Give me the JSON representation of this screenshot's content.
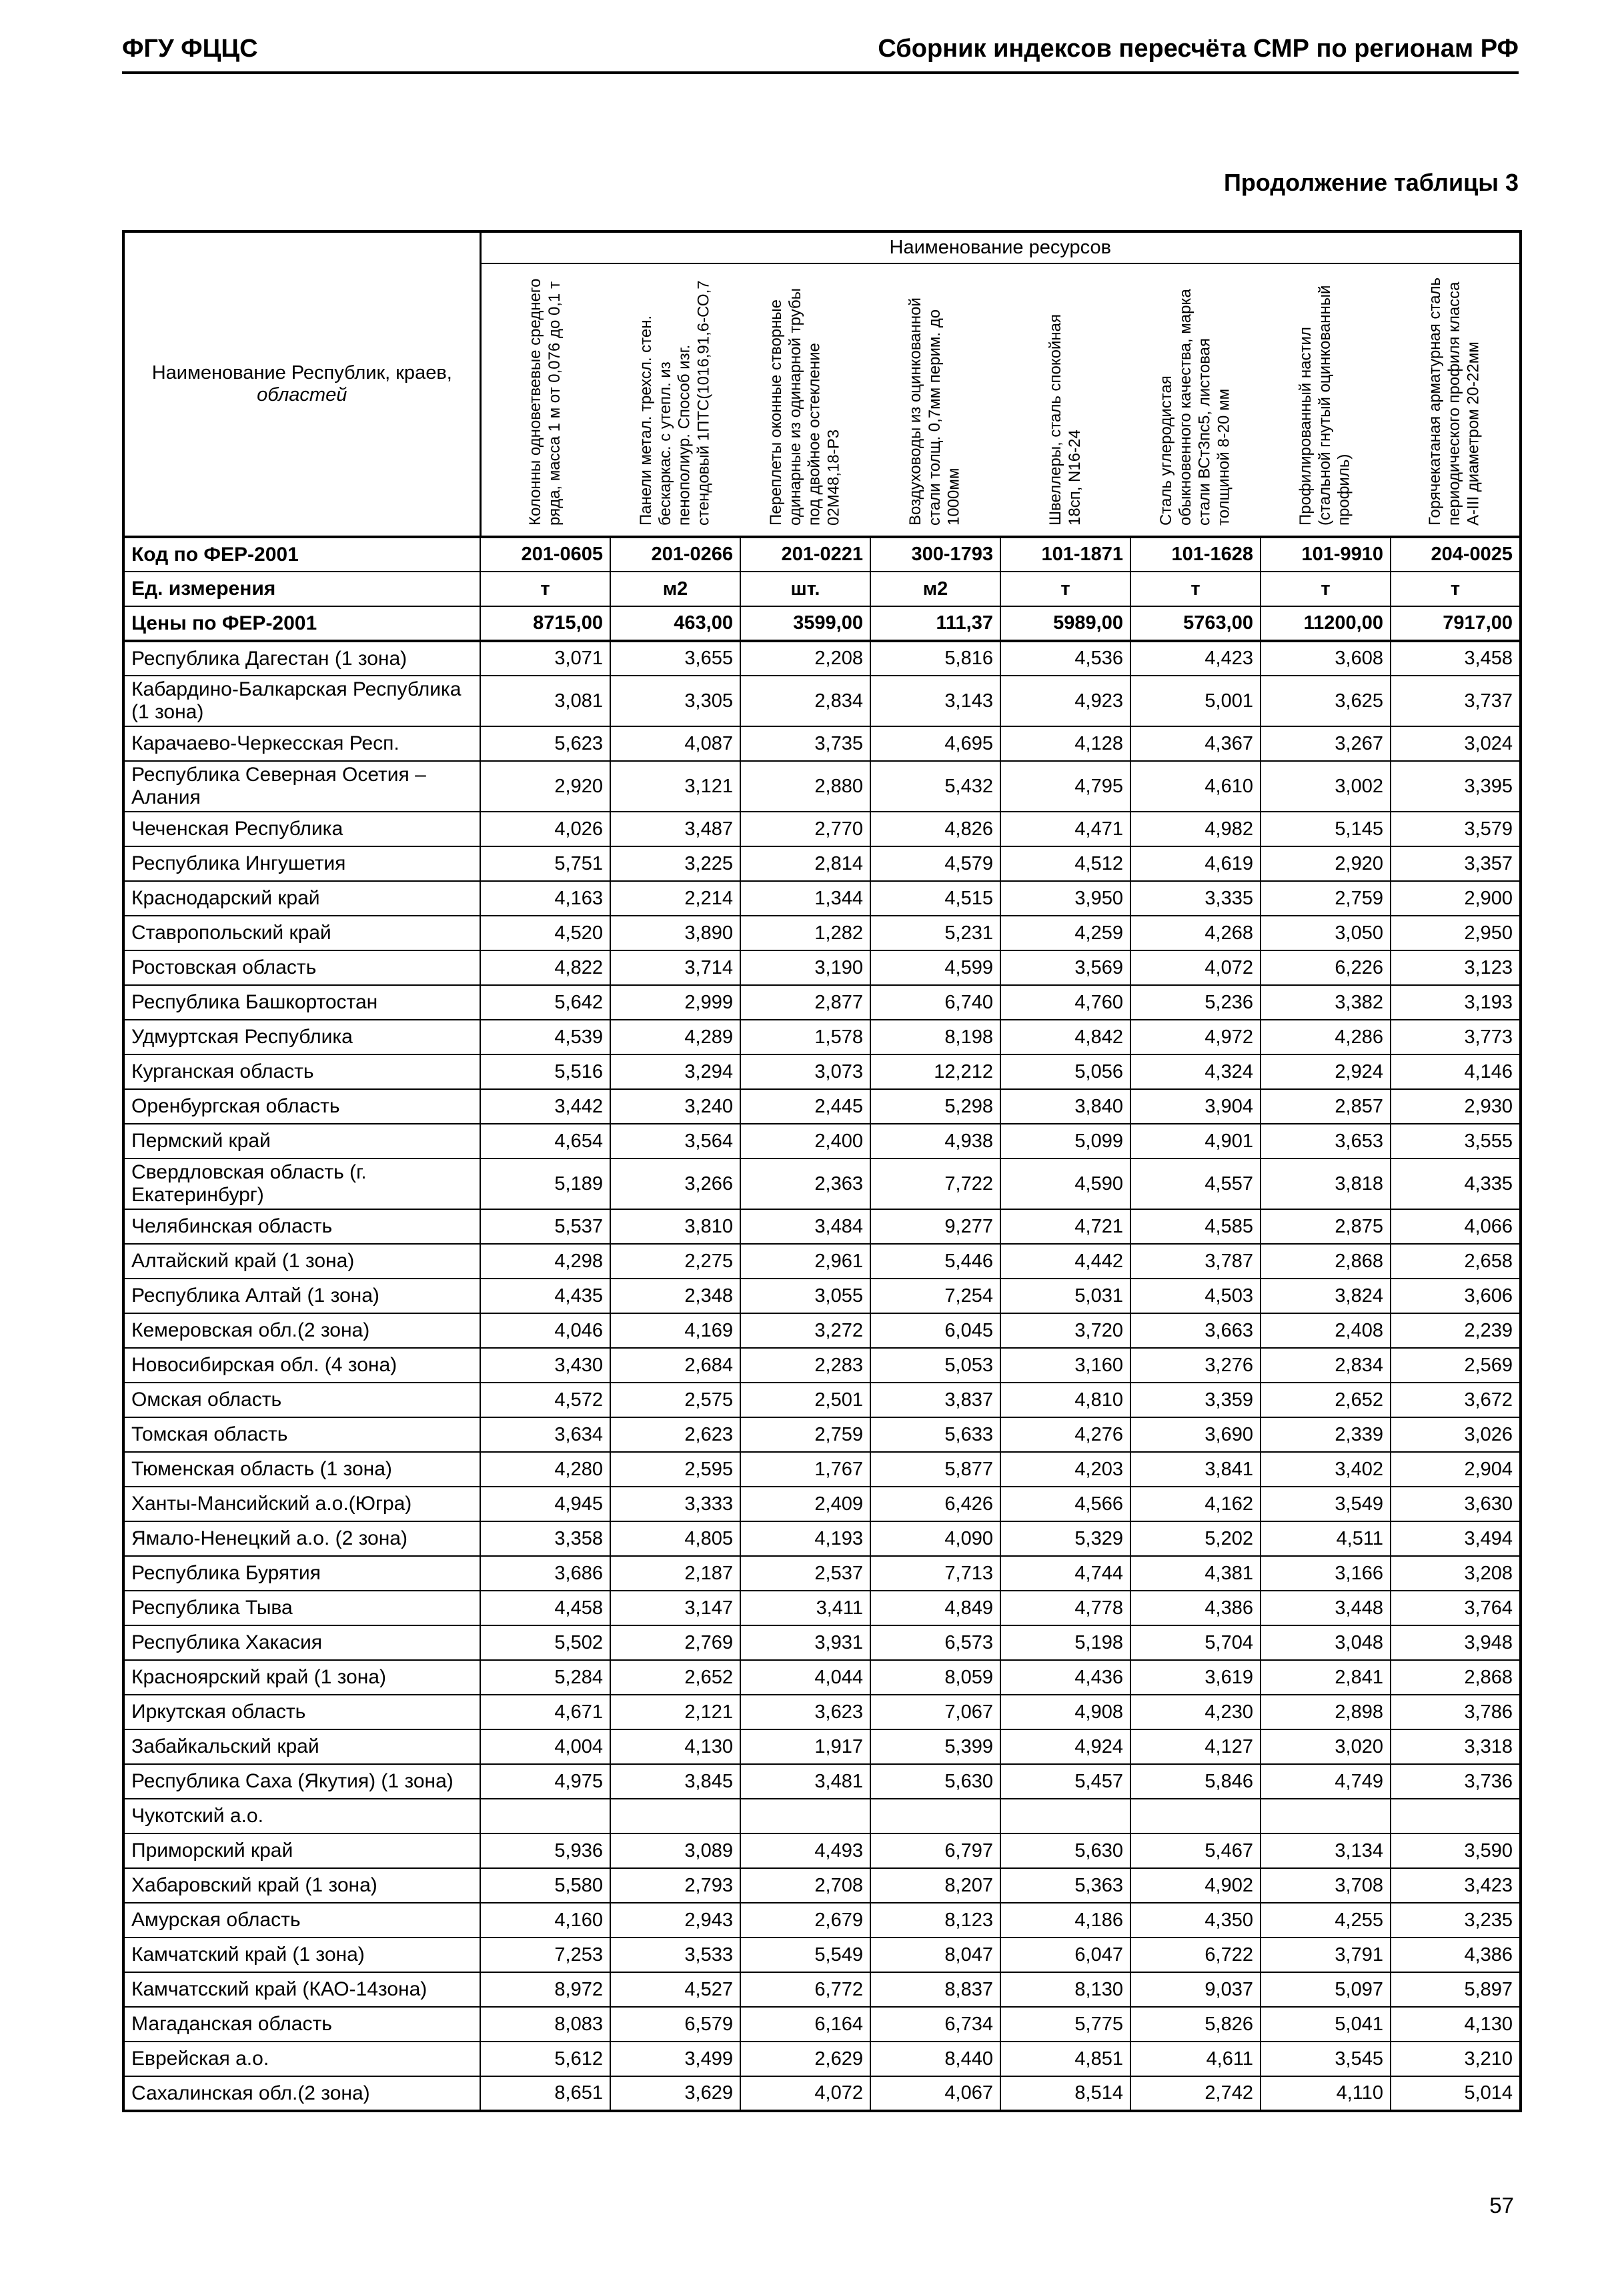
{
  "page": {
    "header_left": "ФГУ ФЦЦС",
    "header_right": "Сборник индексов пересчёта СМР  по регионам РФ",
    "table_caption": "Продолжение таблицы 3",
    "page_number": "57"
  },
  "table": {
    "corner_line1": "Наименование Республик, краев,",
    "corner_line2": "областей",
    "resources_header": "Наименование ресурсов",
    "columns": [
      "Колонны одноветвевые среднего ряда, масса 1 м от 0,076 до 0,1 т",
      "Панели метал. трехсл. стен. бескаркас. с утепл. из пенополиур. Способ изг. стендовый 1ПТС(1016,91,6-СО,7",
      "Переплеты оконные створные одинарные из одинарной трубы под двойное остекление 02М48,18-Р3",
      "Воздуховоды из оцинкованной стали толщ. 0,7мм перим. до 1000мм",
      "Швеллеры, сталь спокойная 18сп, N16-24",
      "Сталь углеродистая обыкновенного качества, марка стали ВСт3пс5, листовая толщиной 8-20 мм",
      "Профилированный настил (стальной гнутый оцинкованный профиль)",
      "Горячекатаная арматурная сталь периодического профиля класса А-III диаметром 20-22мм"
    ],
    "meta_rows": [
      {
        "label": "Код по ФЕР-2001",
        "values": [
          "201-0605",
          "201-0266",
          "201-0221",
          "300-1793",
          "101-1871",
          "101-1628",
          "101-9910",
          "204-0025"
        ]
      },
      {
        "label": "Ед. измерения",
        "values": [
          "т",
          "м2",
          "шт.",
          "м2",
          "т",
          "т",
          "т",
          "т"
        ]
      },
      {
        "label": "Цены по ФЕР-2001",
        "values": [
          "8715,00",
          "463,00",
          "3599,00",
          "111,37",
          "5989,00",
          "5763,00",
          "11200,00",
          "7917,00"
        ]
      }
    ],
    "rows": [
      {
        "label": "Республика Дагестан (1 зона)",
        "values": [
          "3,071",
          "3,655",
          "2,208",
          "5,816",
          "4,536",
          "4,423",
          "3,608",
          "3,458"
        ]
      },
      {
        "label": "Кабардино-Балкарская Республика (1 зона)",
        "values": [
          "3,081",
          "3,305",
          "2,834",
          "3,143",
          "4,923",
          "5,001",
          "3,625",
          "3,737"
        ]
      },
      {
        "label": "Карачаево-Черкесская Респ.",
        "values": [
          "5,623",
          "4,087",
          "3,735",
          "4,695",
          "4,128",
          "4,367",
          "3,267",
          "3,024"
        ]
      },
      {
        "label": "Республика Северная Осетия – Алания",
        "values": [
          "2,920",
          "3,121",
          "2,880",
          "5,432",
          "4,795",
          "4,610",
          "3,002",
          "3,395"
        ]
      },
      {
        "label": "Чеченская Республика",
        "values": [
          "4,026",
          "3,487",
          "2,770",
          "4,826",
          "4,471",
          "4,982",
          "5,145",
          "3,579"
        ]
      },
      {
        "label": "Республика Ингушетия",
        "values": [
          "5,751",
          "3,225",
          "2,814",
          "4,579",
          "4,512",
          "4,619",
          "2,920",
          "3,357"
        ]
      },
      {
        "label": "Краснодарский край",
        "values": [
          "4,163",
          "2,214",
          "1,344",
          "4,515",
          "3,950",
          "3,335",
          "2,759",
          "2,900"
        ]
      },
      {
        "label": "Ставропольский край",
        "values": [
          "4,520",
          "3,890",
          "1,282",
          "5,231",
          "4,259",
          "4,268",
          "3,050",
          "2,950"
        ]
      },
      {
        "label": "Ростовская область",
        "values": [
          "4,822",
          "3,714",
          "3,190",
          "4,599",
          "3,569",
          "4,072",
          "6,226",
          "3,123"
        ]
      },
      {
        "label": "Республика Башкортостан",
        "values": [
          "5,642",
          "2,999",
          "2,877",
          "6,740",
          "4,760",
          "5,236",
          "3,382",
          "3,193"
        ]
      },
      {
        "label": "Удмуртская Республика",
        "values": [
          "4,539",
          "4,289",
          "1,578",
          "8,198",
          "4,842",
          "4,972",
          "4,286",
          "3,773"
        ]
      },
      {
        "label": "Курганская область",
        "values": [
          "5,516",
          "3,294",
          "3,073",
          "12,212",
          "5,056",
          "4,324",
          "2,924",
          "4,146"
        ]
      },
      {
        "label": "Оренбургская область",
        "values": [
          "3,442",
          "3,240",
          "2,445",
          "5,298",
          "3,840",
          "3,904",
          "2,857",
          "2,930"
        ]
      },
      {
        "label": "Пермский край",
        "values": [
          "4,654",
          "3,564",
          "2,400",
          "4,938",
          "5,099",
          "4,901",
          "3,653",
          "3,555"
        ]
      },
      {
        "label": "Свердловская область (г. Екатеринбург)",
        "values": [
          "5,189",
          "3,266",
          "2,363",
          "7,722",
          "4,590",
          "4,557",
          "3,818",
          "4,335"
        ]
      },
      {
        "label": "Челябинская область",
        "values": [
          "5,537",
          "3,810",
          "3,484",
          "9,277",
          "4,721",
          "4,585",
          "2,875",
          "4,066"
        ]
      },
      {
        "label": "Алтайский край (1 зона)",
        "values": [
          "4,298",
          "2,275",
          "2,961",
          "5,446",
          "4,442",
          "3,787",
          "2,868",
          "2,658"
        ]
      },
      {
        "label": "Республика Алтай (1 зона)",
        "values": [
          "4,435",
          "2,348",
          "3,055",
          "7,254",
          "5,031",
          "4,503",
          "3,824",
          "3,606"
        ]
      },
      {
        "label": "Кемеровская обл.(2 зона)",
        "values": [
          "4,046",
          "4,169",
          "3,272",
          "6,045",
          "3,720",
          "3,663",
          "2,408",
          "2,239"
        ]
      },
      {
        "label": "Новосибирская обл. (4 зона)",
        "values": [
          "3,430",
          "2,684",
          "2,283",
          "5,053",
          "3,160",
          "3,276",
          "2,834",
          "2,569"
        ]
      },
      {
        "label": "Омская область",
        "values": [
          "4,572",
          "2,575",
          "2,501",
          "3,837",
          "4,810",
          "3,359",
          "2,652",
          "3,672"
        ]
      },
      {
        "label": "Томская область",
        "values": [
          "3,634",
          "2,623",
          "2,759",
          "5,633",
          "4,276",
          "3,690",
          "2,339",
          "3,026"
        ]
      },
      {
        "label": "Тюменская область (1 зона)",
        "values": [
          "4,280",
          "2,595",
          "1,767",
          "5,877",
          "4,203",
          "3,841",
          "3,402",
          "2,904"
        ]
      },
      {
        "label": "Ханты-Мансийский а.о.(Югра)",
        "values": [
          "4,945",
          "3,333",
          "2,409",
          "6,426",
          "4,566",
          "4,162",
          "3,549",
          "3,630"
        ]
      },
      {
        "label": "Ямало-Ненецкий а.о. (2 зона)",
        "values": [
          "3,358",
          "4,805",
          "4,193",
          "4,090",
          "5,329",
          "5,202",
          "4,511",
          "3,494"
        ]
      },
      {
        "label": "Республика Бурятия",
        "values": [
          "3,686",
          "2,187",
          "2,537",
          "7,713",
          "4,744",
          "4,381",
          "3,166",
          "3,208"
        ]
      },
      {
        "label": "Республика Тыва",
        "values": [
          "4,458",
          "3,147",
          "3,411",
          "4,849",
          "4,778",
          "4,386",
          "3,448",
          "3,764"
        ]
      },
      {
        "label": "Республика Хакасия",
        "values": [
          "5,502",
          "2,769",
          "3,931",
          "6,573",
          "5,198",
          "5,704",
          "3,048",
          "3,948"
        ]
      },
      {
        "label": "Красноярский край (1 зона)",
        "values": [
          "5,284",
          "2,652",
          "4,044",
          "8,059",
          "4,436",
          "3,619",
          "2,841",
          "2,868"
        ]
      },
      {
        "label": "Иркутская область",
        "values": [
          "4,671",
          "2,121",
          "3,623",
          "7,067",
          "4,908",
          "4,230",
          "2,898",
          "3,786"
        ]
      },
      {
        "label": "Забайкальский край",
        "values": [
          "4,004",
          "4,130",
          "1,917",
          "5,399",
          "4,924",
          "4,127",
          "3,020",
          "3,318"
        ]
      },
      {
        "label": "Республика Саха (Якутия) (1 зона)",
        "values": [
          "4,975",
          "3,845",
          "3,481",
          "5,630",
          "5,457",
          "5,846",
          "4,749",
          "3,736"
        ]
      },
      {
        "label": "Чукотский а.о.",
        "values": [
          "",
          "",
          "",
          "",
          "",
          "",
          "",
          ""
        ]
      },
      {
        "label": "Приморский край",
        "values": [
          "5,936",
          "3,089",
          "4,493",
          "6,797",
          "5,630",
          "5,467",
          "3,134",
          "3,590"
        ]
      },
      {
        "label": "Хабаровский край (1 зона)",
        "values": [
          "5,580",
          "2,793",
          "2,708",
          "8,207",
          "5,363",
          "4,902",
          "3,708",
          "3,423"
        ]
      },
      {
        "label": "Амурская область",
        "values": [
          "4,160",
          "2,943",
          "2,679",
          "8,123",
          "4,186",
          "4,350",
          "4,255",
          "3,235"
        ]
      },
      {
        "label": "Камчатский край (1 зона)",
        "values": [
          "7,253",
          "3,533",
          "5,549",
          "8,047",
          "6,047",
          "6,722",
          "3,791",
          "4,386"
        ]
      },
      {
        "label": "Камчатсский край (КАО-14зона)",
        "values": [
          "8,972",
          "4,527",
          "6,772",
          "8,837",
          "8,130",
          "9,037",
          "5,097",
          "5,897"
        ]
      },
      {
        "label": "Магаданская область",
        "values": [
          "8,083",
          "6,579",
          "6,164",
          "6,734",
          "5,775",
          "5,826",
          "5,041",
          "4,130"
        ]
      },
      {
        "label": "Еврейская а.о.",
        "values": [
          "5,612",
          "3,499",
          "2,629",
          "8,440",
          "4,851",
          "4,611",
          "3,545",
          "3,210"
        ]
      },
      {
        "label": "Сахалинская обл.(2 зона)",
        "values": [
          "8,651",
          "3,629",
          "4,072",
          "4,067",
          "8,514",
          "2,742",
          "4,110",
          "5,014"
        ]
      }
    ]
  }
}
